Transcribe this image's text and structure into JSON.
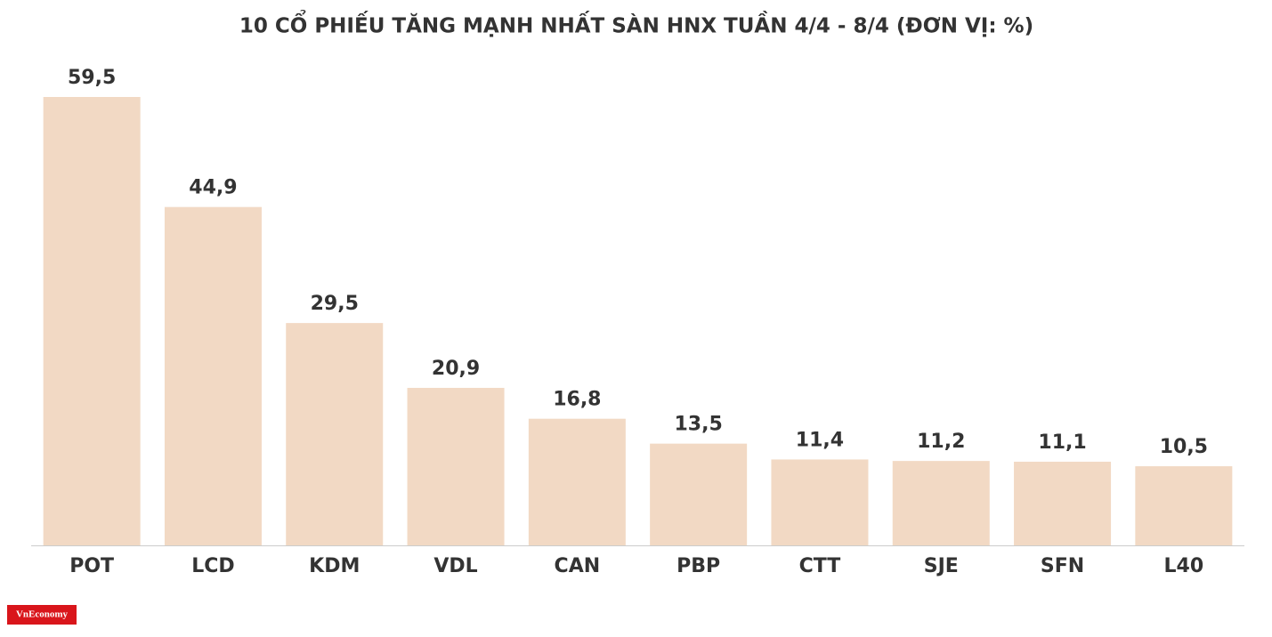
{
  "chart_data": {
    "type": "bar",
    "title": "10 CỔ PHIẾU TĂNG MẠNH NHẤT SÀN HNX TUẦN 4/4 - 8/4 (ĐƠN VỊ: %)",
    "categories": [
      "POT",
      "LCD",
      "KDM",
      "VDL",
      "CAN",
      "PBP",
      "CTT",
      "SJE",
      "SFN",
      "L40"
    ],
    "values": [
      59.5,
      44.9,
      29.5,
      20.9,
      16.8,
      13.5,
      11.4,
      11.2,
      11.1,
      10.5
    ],
    "value_labels": [
      "59,5",
      "44,9",
      "29,5",
      "20,9",
      "16,8",
      "13,5",
      "11,4",
      "11,2",
      "11,1",
      "10,5"
    ],
    "color": "#f2d9c4"
  },
  "logo": "VnEconomy"
}
